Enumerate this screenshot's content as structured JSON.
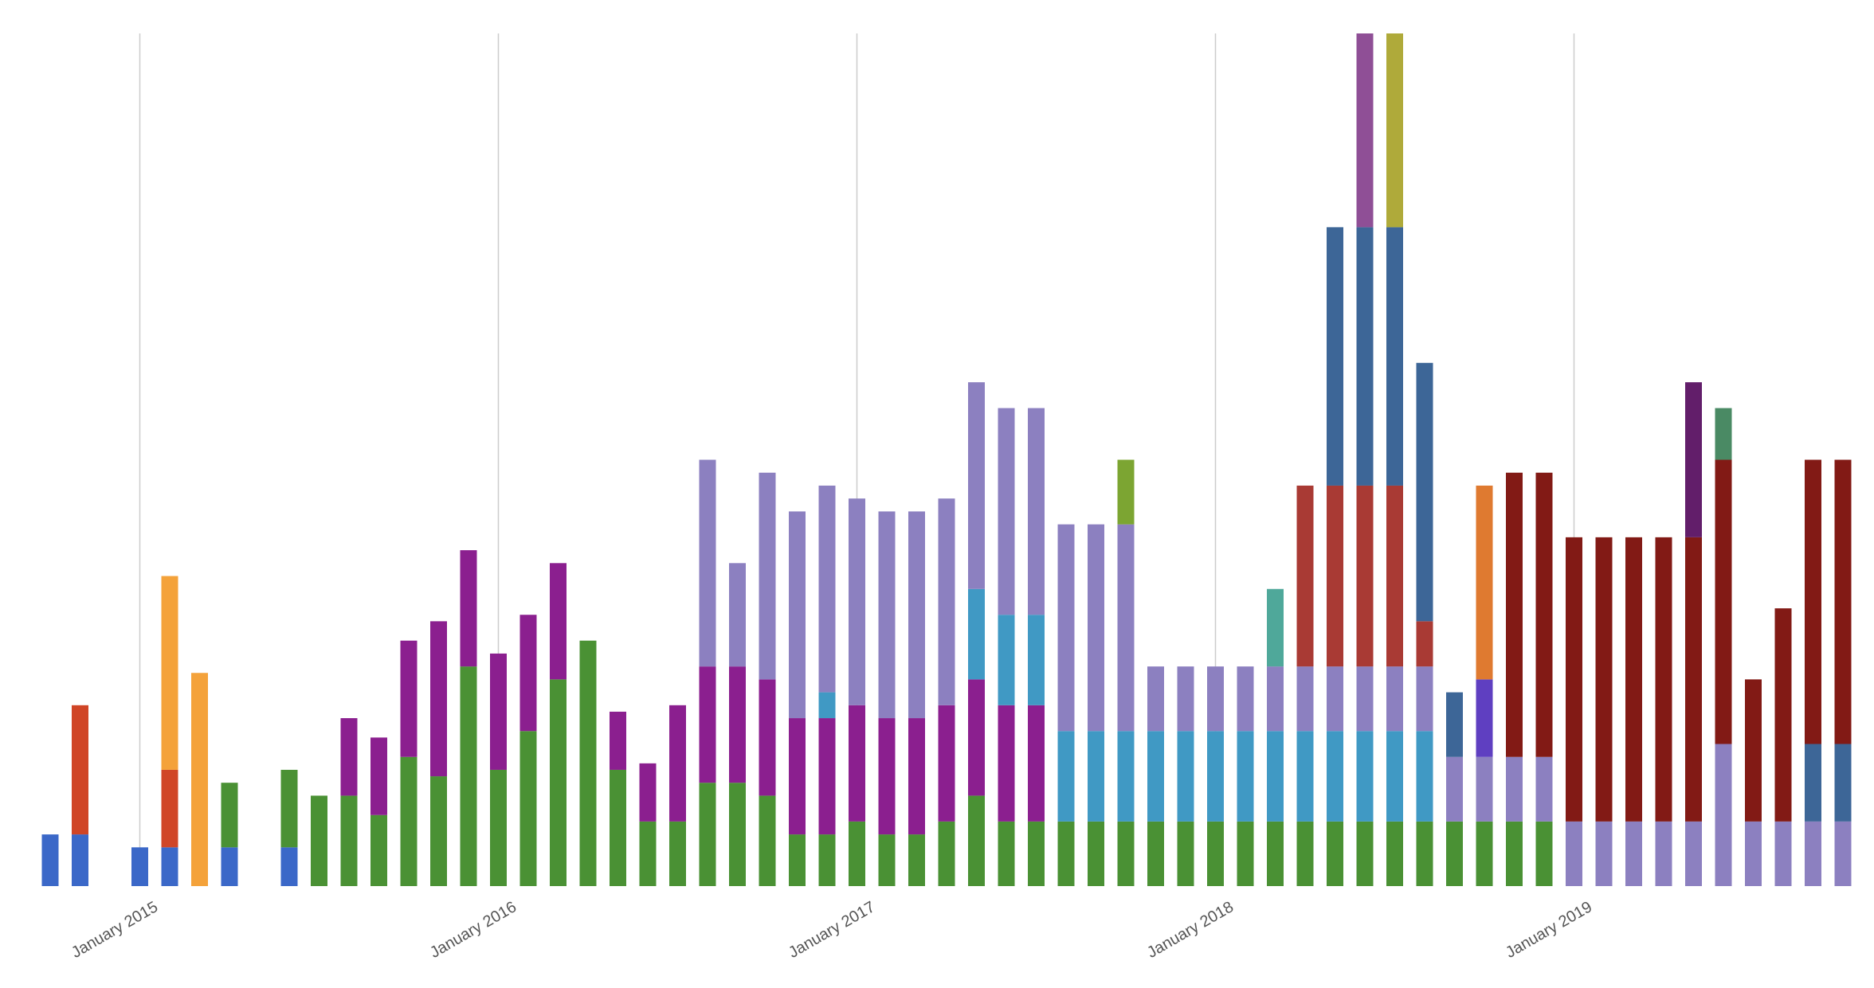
{
  "chart_data": {
    "type": "stacked_bar",
    "categories": [
      null,
      null,
      null,
      "January 2015",
      null,
      null,
      null,
      null,
      null,
      null,
      null,
      null,
      null,
      null,
      null,
      "January 2016",
      null,
      null,
      null,
      null,
      null,
      null,
      null,
      null,
      null,
      null,
      null,
      "January 2017",
      null,
      null,
      null,
      null,
      null,
      null,
      null,
      null,
      null,
      null,
      null,
      "January 2018",
      null,
      null,
      null,
      null,
      null,
      null,
      null,
      null,
      null,
      null,
      null,
      "January 2019",
      null,
      null,
      null,
      null,
      null,
      null,
      null,
      null,
      null
    ],
    "ylim": [
      0,
      132
    ],
    "grid": true,
    "series": [
      {
        "color": "#3b68c8",
        "values": [
          8,
          8,
          null,
          6,
          6,
          null,
          6,
          null,
          6,
          null,
          null,
          null,
          null,
          null,
          null,
          null,
          null,
          null,
          null,
          null,
          null,
          null,
          null,
          null,
          null,
          null,
          null,
          null,
          null,
          null,
          null,
          null,
          null,
          null,
          null,
          null,
          null,
          null,
          null,
          null,
          null,
          null,
          null,
          null,
          null,
          null,
          null,
          null,
          null,
          null,
          null,
          null,
          null,
          null,
          null,
          null,
          null,
          null,
          null,
          null,
          null
        ]
      },
      {
        "color": "#d04526",
        "values": [
          null,
          20,
          null,
          null,
          12,
          null,
          null,
          null,
          null,
          null,
          null,
          null,
          null,
          null,
          null,
          null,
          null,
          null,
          null,
          null,
          null,
          null,
          null,
          null,
          null,
          null,
          null,
          null,
          null,
          null,
          null,
          null,
          null,
          null,
          null,
          null,
          null,
          null,
          null,
          null,
          null,
          null,
          null,
          null,
          null,
          null,
          null,
          null,
          null,
          null,
          null,
          null,
          null,
          null,
          null,
          null,
          null,
          null,
          null,
          null,
          null
        ]
      },
      {
        "color": "#f4a23a",
        "values": [
          null,
          null,
          null,
          null,
          30,
          33,
          null,
          null,
          null,
          null,
          null,
          null,
          null,
          null,
          null,
          null,
          null,
          null,
          null,
          null,
          null,
          null,
          null,
          null,
          null,
          null,
          null,
          null,
          null,
          null,
          null,
          null,
          null,
          null,
          null,
          null,
          null,
          null,
          null,
          null,
          null,
          null,
          null,
          null,
          null,
          null,
          null,
          null,
          null,
          null,
          null,
          null,
          null,
          null,
          null,
          null,
          null,
          null,
          null,
          null,
          null
        ]
      },
      {
        "color": "#4a9134",
        "values": [
          null,
          null,
          null,
          null,
          null,
          null,
          10,
          null,
          12,
          14,
          14,
          11,
          20,
          17,
          34,
          18,
          24,
          32,
          38,
          18,
          10,
          10,
          16,
          16,
          14,
          8,
          8,
          10,
          8,
          8,
          10,
          14,
          10,
          10,
          10,
          10,
          10,
          10,
          10,
          10,
          10,
          10,
          10,
          10,
          10,
          10,
          10,
          10,
          10,
          10,
          10,
          null,
          null,
          null,
          null,
          null,
          null,
          null,
          null,
          null,
          null
        ]
      },
      {
        "color": "#8b1f8f",
        "values": [
          null,
          null,
          null,
          null,
          null,
          null,
          null,
          null,
          null,
          null,
          12,
          12,
          18,
          24,
          18,
          18,
          18,
          18,
          null,
          9,
          9,
          18,
          18,
          18,
          18,
          18,
          18,
          18,
          18,
          18,
          18,
          18,
          18,
          18,
          null,
          null,
          null,
          null,
          null,
          null,
          null,
          null,
          null,
          null,
          null,
          null,
          null,
          null,
          null,
          null,
          null,
          null,
          null,
          null,
          null,
          null,
          null,
          null,
          null,
          null,
          null
        ]
      },
      {
        "color": "#4099c4",
        "values": [
          null,
          null,
          null,
          null,
          null,
          null,
          null,
          null,
          null,
          null,
          null,
          null,
          null,
          null,
          null,
          null,
          null,
          null,
          null,
          null,
          null,
          null,
          null,
          null,
          null,
          null,
          4,
          null,
          null,
          null,
          null,
          14,
          14,
          14,
          14,
          14,
          14,
          14,
          14,
          14,
          14,
          14,
          14,
          14,
          14,
          14,
          14,
          null,
          null,
          null,
          null,
          null,
          null,
          null,
          null,
          null,
          null,
          null,
          null,
          null,
          null
        ]
      },
      {
        "color": "#8c80c0",
        "values": [
          null,
          null,
          null,
          null,
          null,
          null,
          null,
          null,
          null,
          null,
          null,
          null,
          null,
          null,
          null,
          null,
          null,
          null,
          null,
          null,
          null,
          null,
          32,
          16,
          32,
          32,
          32,
          32,
          32,
          32,
          32,
          32,
          32,
          32,
          32,
          32,
          32,
          10,
          10,
          10,
          10,
          10,
          10,
          10,
          10,
          10,
          10,
          10,
          10,
          10,
          10,
          10,
          10,
          10,
          10,
          10,
          22,
          10,
          10,
          10,
          10
        ]
      },
      {
        "color": "#7ca532",
        "values": [
          null,
          null,
          null,
          null,
          null,
          null,
          null,
          null,
          null,
          null,
          null,
          null,
          null,
          null,
          null,
          null,
          null,
          null,
          null,
          null,
          null,
          null,
          null,
          null,
          null,
          null,
          null,
          null,
          null,
          null,
          null,
          null,
          null,
          null,
          null,
          null,
          10,
          null,
          null,
          null,
          null,
          null,
          null,
          null,
          null,
          null,
          null,
          null,
          null,
          null,
          null,
          null,
          null,
          null,
          null,
          null,
          null,
          null,
          null,
          null,
          null
        ]
      },
      {
        "color": "#4fa89a",
        "values": [
          null,
          null,
          null,
          null,
          null,
          null,
          null,
          null,
          null,
          null,
          null,
          null,
          null,
          null,
          null,
          null,
          null,
          null,
          null,
          null,
          null,
          null,
          null,
          null,
          null,
          null,
          null,
          null,
          null,
          null,
          null,
          null,
          null,
          null,
          null,
          null,
          null,
          null,
          null,
          null,
          null,
          12,
          null,
          null,
          null,
          null,
          null,
          null,
          null,
          null,
          null,
          null,
          null,
          null,
          null,
          null,
          null,
          null,
          null,
          null,
          null
        ]
      },
      {
        "color": "#a93a34",
        "values": [
          null,
          null,
          null,
          null,
          null,
          null,
          null,
          null,
          null,
          null,
          null,
          null,
          null,
          null,
          null,
          null,
          null,
          null,
          null,
          null,
          null,
          null,
          null,
          null,
          null,
          null,
          null,
          null,
          null,
          null,
          null,
          null,
          null,
          null,
          null,
          null,
          null,
          null,
          null,
          null,
          null,
          null,
          28,
          28,
          28,
          28,
          7,
          null,
          null,
          null,
          null,
          null,
          null,
          null,
          null,
          null,
          null,
          null,
          null,
          null,
          null
        ]
      },
      {
        "color": "#3d6697",
        "values": [
          null,
          null,
          null,
          null,
          null,
          null,
          null,
          null,
          null,
          null,
          null,
          null,
          null,
          null,
          null,
          null,
          null,
          null,
          null,
          null,
          null,
          null,
          null,
          null,
          null,
          null,
          null,
          null,
          null,
          null,
          null,
          null,
          null,
          null,
          null,
          null,
          null,
          null,
          null,
          null,
          null,
          null,
          null,
          40,
          40,
          40,
          40,
          10,
          null,
          null,
          null,
          null,
          null,
          null,
          null,
          null,
          null,
          null,
          null,
          12,
          12
        ]
      },
      {
        "color": "#8f4f96",
        "values": [
          null,
          null,
          null,
          null,
          null,
          null,
          null,
          null,
          null,
          null,
          null,
          null,
          null,
          null,
          null,
          null,
          null,
          null,
          null,
          null,
          null,
          null,
          null,
          null,
          null,
          null,
          null,
          null,
          null,
          null,
          null,
          null,
          null,
          null,
          null,
          null,
          null,
          null,
          null,
          null,
          null,
          null,
          null,
          null,
          30,
          null,
          null,
          null,
          null,
          null,
          null,
          null,
          null,
          null,
          null,
          null,
          null,
          null,
          null,
          null,
          null
        ]
      },
      {
        "color": "#afaa3a",
        "values": [
          null,
          null,
          null,
          null,
          null,
          null,
          null,
          null,
          null,
          null,
          null,
          null,
          null,
          null,
          null,
          null,
          null,
          null,
          null,
          null,
          null,
          null,
          null,
          null,
          null,
          null,
          null,
          null,
          null,
          null,
          null,
          null,
          null,
          null,
          null,
          null,
          null,
          null,
          null,
          null,
          null,
          null,
          null,
          null,
          null,
          30,
          null,
          null,
          null,
          null,
          null,
          null,
          null,
          null,
          null,
          null,
          null,
          null,
          null,
          null,
          null
        ]
      },
      {
        "color": "#5f3fc1",
        "values": [
          null,
          null,
          null,
          null,
          null,
          null,
          null,
          null,
          null,
          null,
          null,
          null,
          null,
          null,
          null,
          null,
          null,
          null,
          null,
          null,
          null,
          null,
          null,
          null,
          null,
          null,
          null,
          null,
          null,
          null,
          null,
          null,
          null,
          null,
          null,
          null,
          null,
          null,
          null,
          null,
          null,
          null,
          null,
          null,
          null,
          null,
          null,
          null,
          12,
          null,
          null,
          null,
          null,
          null,
          null,
          null,
          null,
          null,
          null,
          null,
          null
        ]
      },
      {
        "color": "#df7a30",
        "values": [
          null,
          null,
          null,
          null,
          null,
          null,
          null,
          null,
          null,
          null,
          null,
          null,
          null,
          null,
          null,
          null,
          null,
          null,
          null,
          null,
          null,
          null,
          null,
          null,
          null,
          null,
          null,
          null,
          null,
          null,
          null,
          null,
          null,
          null,
          null,
          null,
          null,
          null,
          null,
          null,
          null,
          null,
          null,
          null,
          null,
          null,
          null,
          null,
          30,
          null,
          null,
          null,
          null,
          null,
          null,
          null,
          null,
          null,
          null,
          null,
          null
        ]
      },
      {
        "color": "#821a15",
        "values": [
          null,
          null,
          null,
          null,
          null,
          null,
          null,
          null,
          null,
          null,
          null,
          null,
          null,
          null,
          null,
          null,
          null,
          null,
          null,
          null,
          null,
          null,
          null,
          null,
          null,
          null,
          null,
          null,
          null,
          null,
          null,
          null,
          null,
          null,
          null,
          null,
          null,
          null,
          null,
          null,
          null,
          null,
          null,
          null,
          null,
          null,
          null,
          null,
          null,
          44,
          44,
          44,
          44,
          44,
          44,
          44,
          44,
          22,
          33,
          44,
          44
        ]
      },
      {
        "color": "#621e6a",
        "values": [
          null,
          null,
          null,
          null,
          null,
          null,
          null,
          null,
          null,
          null,
          null,
          null,
          null,
          null,
          null,
          null,
          null,
          null,
          null,
          null,
          null,
          null,
          null,
          null,
          null,
          null,
          null,
          null,
          null,
          null,
          null,
          null,
          null,
          null,
          null,
          null,
          null,
          null,
          null,
          null,
          null,
          null,
          null,
          null,
          null,
          null,
          null,
          null,
          null,
          null,
          null,
          null,
          null,
          null,
          null,
          24,
          null,
          null,
          null,
          null,
          null
        ]
      },
      {
        "color": "#4a8a64",
        "values": [
          null,
          null,
          null,
          null,
          null,
          null,
          null,
          null,
          null,
          null,
          null,
          null,
          null,
          null,
          null,
          null,
          null,
          null,
          null,
          null,
          null,
          null,
          null,
          null,
          null,
          null,
          null,
          null,
          null,
          null,
          null,
          null,
          null,
          null,
          null,
          null,
          null,
          null,
          null,
          null,
          null,
          null,
          null,
          null,
          null,
          null,
          null,
          null,
          null,
          null,
          null,
          null,
          null,
          null,
          null,
          null,
          8,
          null,
          null,
          null,
          null
        ]
      }
    ]
  }
}
